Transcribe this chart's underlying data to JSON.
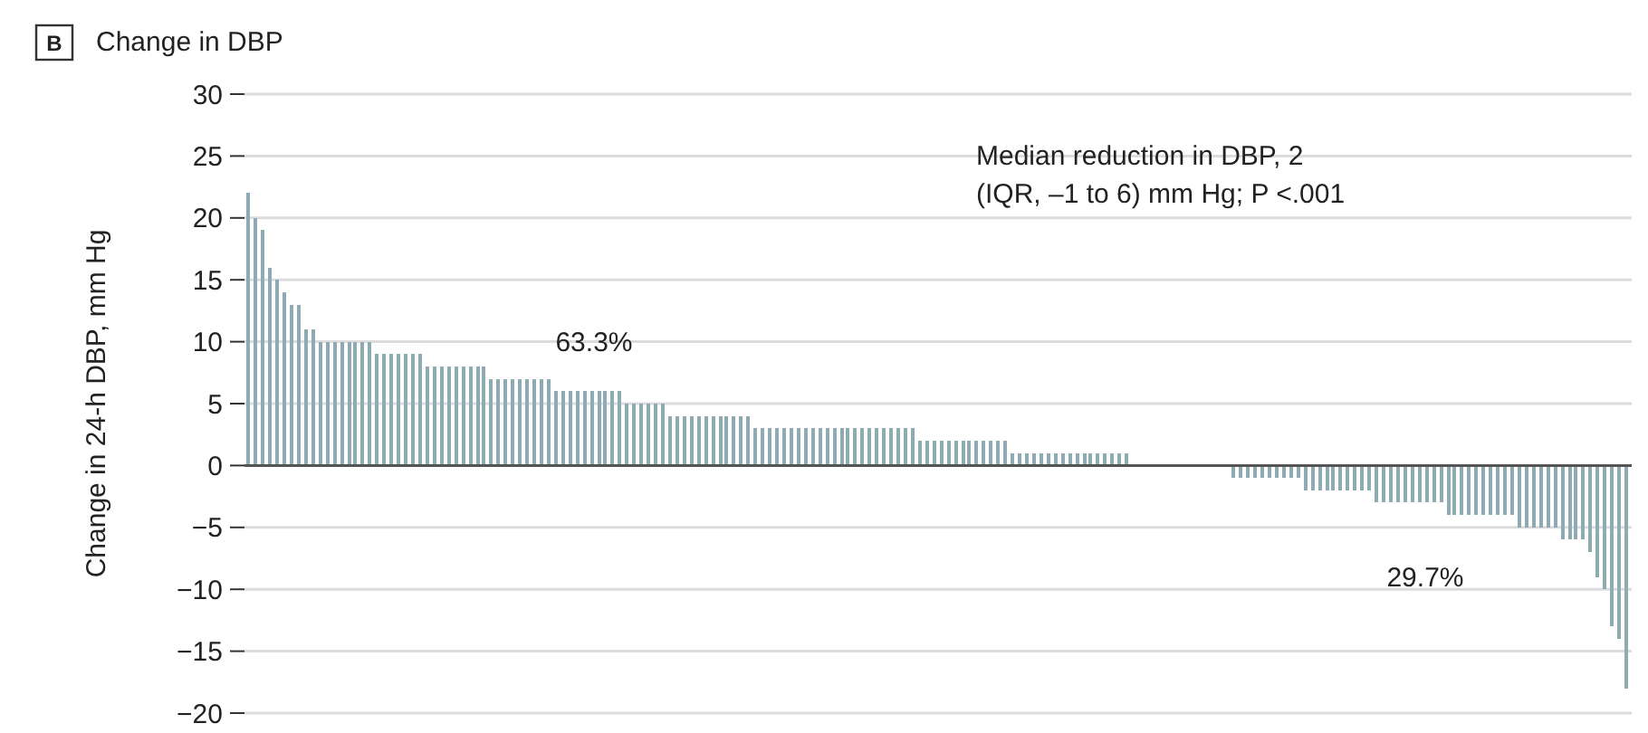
{
  "chart_data": {
    "type": "bar",
    "title": "Change in DBP",
    "ylabel": "Change in 24-h DBP, mm Hg",
    "annotations": [
      "B",
      "Median reduction in DBP, 2 (IQR, –1 to 6) mm Hg; P <.001",
      "63.3%",
      "29.7%"
    ],
    "categories": [
      null,
      null,
      null,
      null,
      null,
      null,
      null,
      null,
      null,
      null,
      null,
      null,
      null,
      null,
      null,
      null,
      null,
      null,
      null,
      null,
      null,
      null,
      null,
      null,
      null,
      null,
      null,
      null,
      null,
      null,
      null,
      null,
      null,
      null,
      null,
      null,
      null,
      null,
      null,
      null,
      null,
      null,
      null,
      null,
      null,
      null,
      null,
      null,
      null,
      null,
      null,
      null,
      null,
      null,
      null,
      null,
      null,
      null,
      null,
      null,
      null,
      null,
      null,
      null,
      null,
      null,
      null,
      null,
      null,
      null,
      null,
      null,
      null,
      null,
      null,
      null,
      null,
      null,
      null,
      null,
      null,
      null,
      null,
      null,
      null,
      null,
      null,
      null,
      null,
      null,
      null,
      null,
      null,
      null,
      null,
      null,
      null,
      null,
      null,
      null,
      null,
      null,
      null,
      null,
      null,
      null,
      null,
      null,
      null,
      null,
      null,
      null,
      null,
      null,
      null,
      null,
      null,
      null,
      null,
      null,
      null,
      null,
      null,
      null,
      null,
      null,
      null,
      null,
      null,
      null,
      null,
      null,
      null,
      null,
      null,
      null,
      null,
      null,
      null,
      null,
      null,
      null,
      null,
      null,
      null,
      null,
      null,
      null,
      null,
      null,
      null,
      null,
      null,
      null,
      null,
      null,
      null,
      null,
      null,
      null,
      null,
      null,
      null,
      null,
      null,
      null,
      null,
      null,
      null,
      null,
      null,
      null,
      null,
      null,
      null,
      null,
      null,
      null,
      null,
      null,
      null,
      null,
      null,
      null,
      null,
      null,
      null,
      null,
      null,
      null,
      null,
      null,
      null,
      null
    ],
    "values": [
      22,
      20,
      19,
      16,
      15,
      14,
      13,
      13,
      11,
      11,
      10,
      10,
      10,
      10,
      10,
      10,
      10,
      10,
      9,
      9,
      9,
      9,
      9,
      9,
      9,
      8,
      8,
      8,
      8,
      8,
      8,
      8,
      8,
      8,
      7,
      7,
      7,
      7,
      7,
      7,
      7,
      7,
      7,
      6,
      6,
      6,
      6,
      6,
      6,
      6,
      6,
      6,
      6,
      5,
      5,
      5,
      5,
      5,
      5,
      4,
      4,
      4,
      4,
      4,
      4,
      4,
      4,
      4,
      4,
      4,
      4,
      3,
      3,
      3,
      3,
      3,
      3,
      3,
      3,
      3,
      3,
      3,
      3,
      3,
      3,
      3,
      3,
      3,
      3,
      3,
      3,
      3,
      3,
      3,
      2,
      2,
      2,
      2,
      2,
      2,
      2,
      2,
      2,
      2,
      2,
      2,
      2,
      1,
      1,
      1,
      1,
      1,
      1,
      1,
      1,
      1,
      1,
      1,
      1,
      1,
      1,
      1,
      1,
      1,
      0,
      0,
      0,
      0,
      0,
      0,
      0,
      0,
      0,
      0,
      0,
      0,
      0,
      0,
      -1,
      -1,
      -1,
      -1,
      -1,
      -1,
      -1,
      -1,
      -1,
      -1,
      -2,
      -2,
      -2,
      -2,
      -2,
      -2,
      -2,
      -2,
      -2,
      -2,
      -3,
      -3,
      -3,
      -3,
      -3,
      -3,
      -3,
      -3,
      -3,
      -3,
      -4,
      -4,
      -4,
      -4,
      -4,
      -4,
      -4,
      -4,
      -4,
      -4,
      -5,
      -5,
      -5,
      -5,
      -5,
      -5,
      -6,
      -6,
      -6,
      -6,
      -7,
      -9,
      -10,
      -13,
      -14,
      -18
    ],
    "color": "#8eaab3",
    "ylim": [
      -20,
      30
    ],
    "yticks": [
      -20,
      -15,
      -10,
      -5,
      0,
      5,
      10,
      15,
      20,
      25,
      30
    ],
    "grid": "y"
  }
}
